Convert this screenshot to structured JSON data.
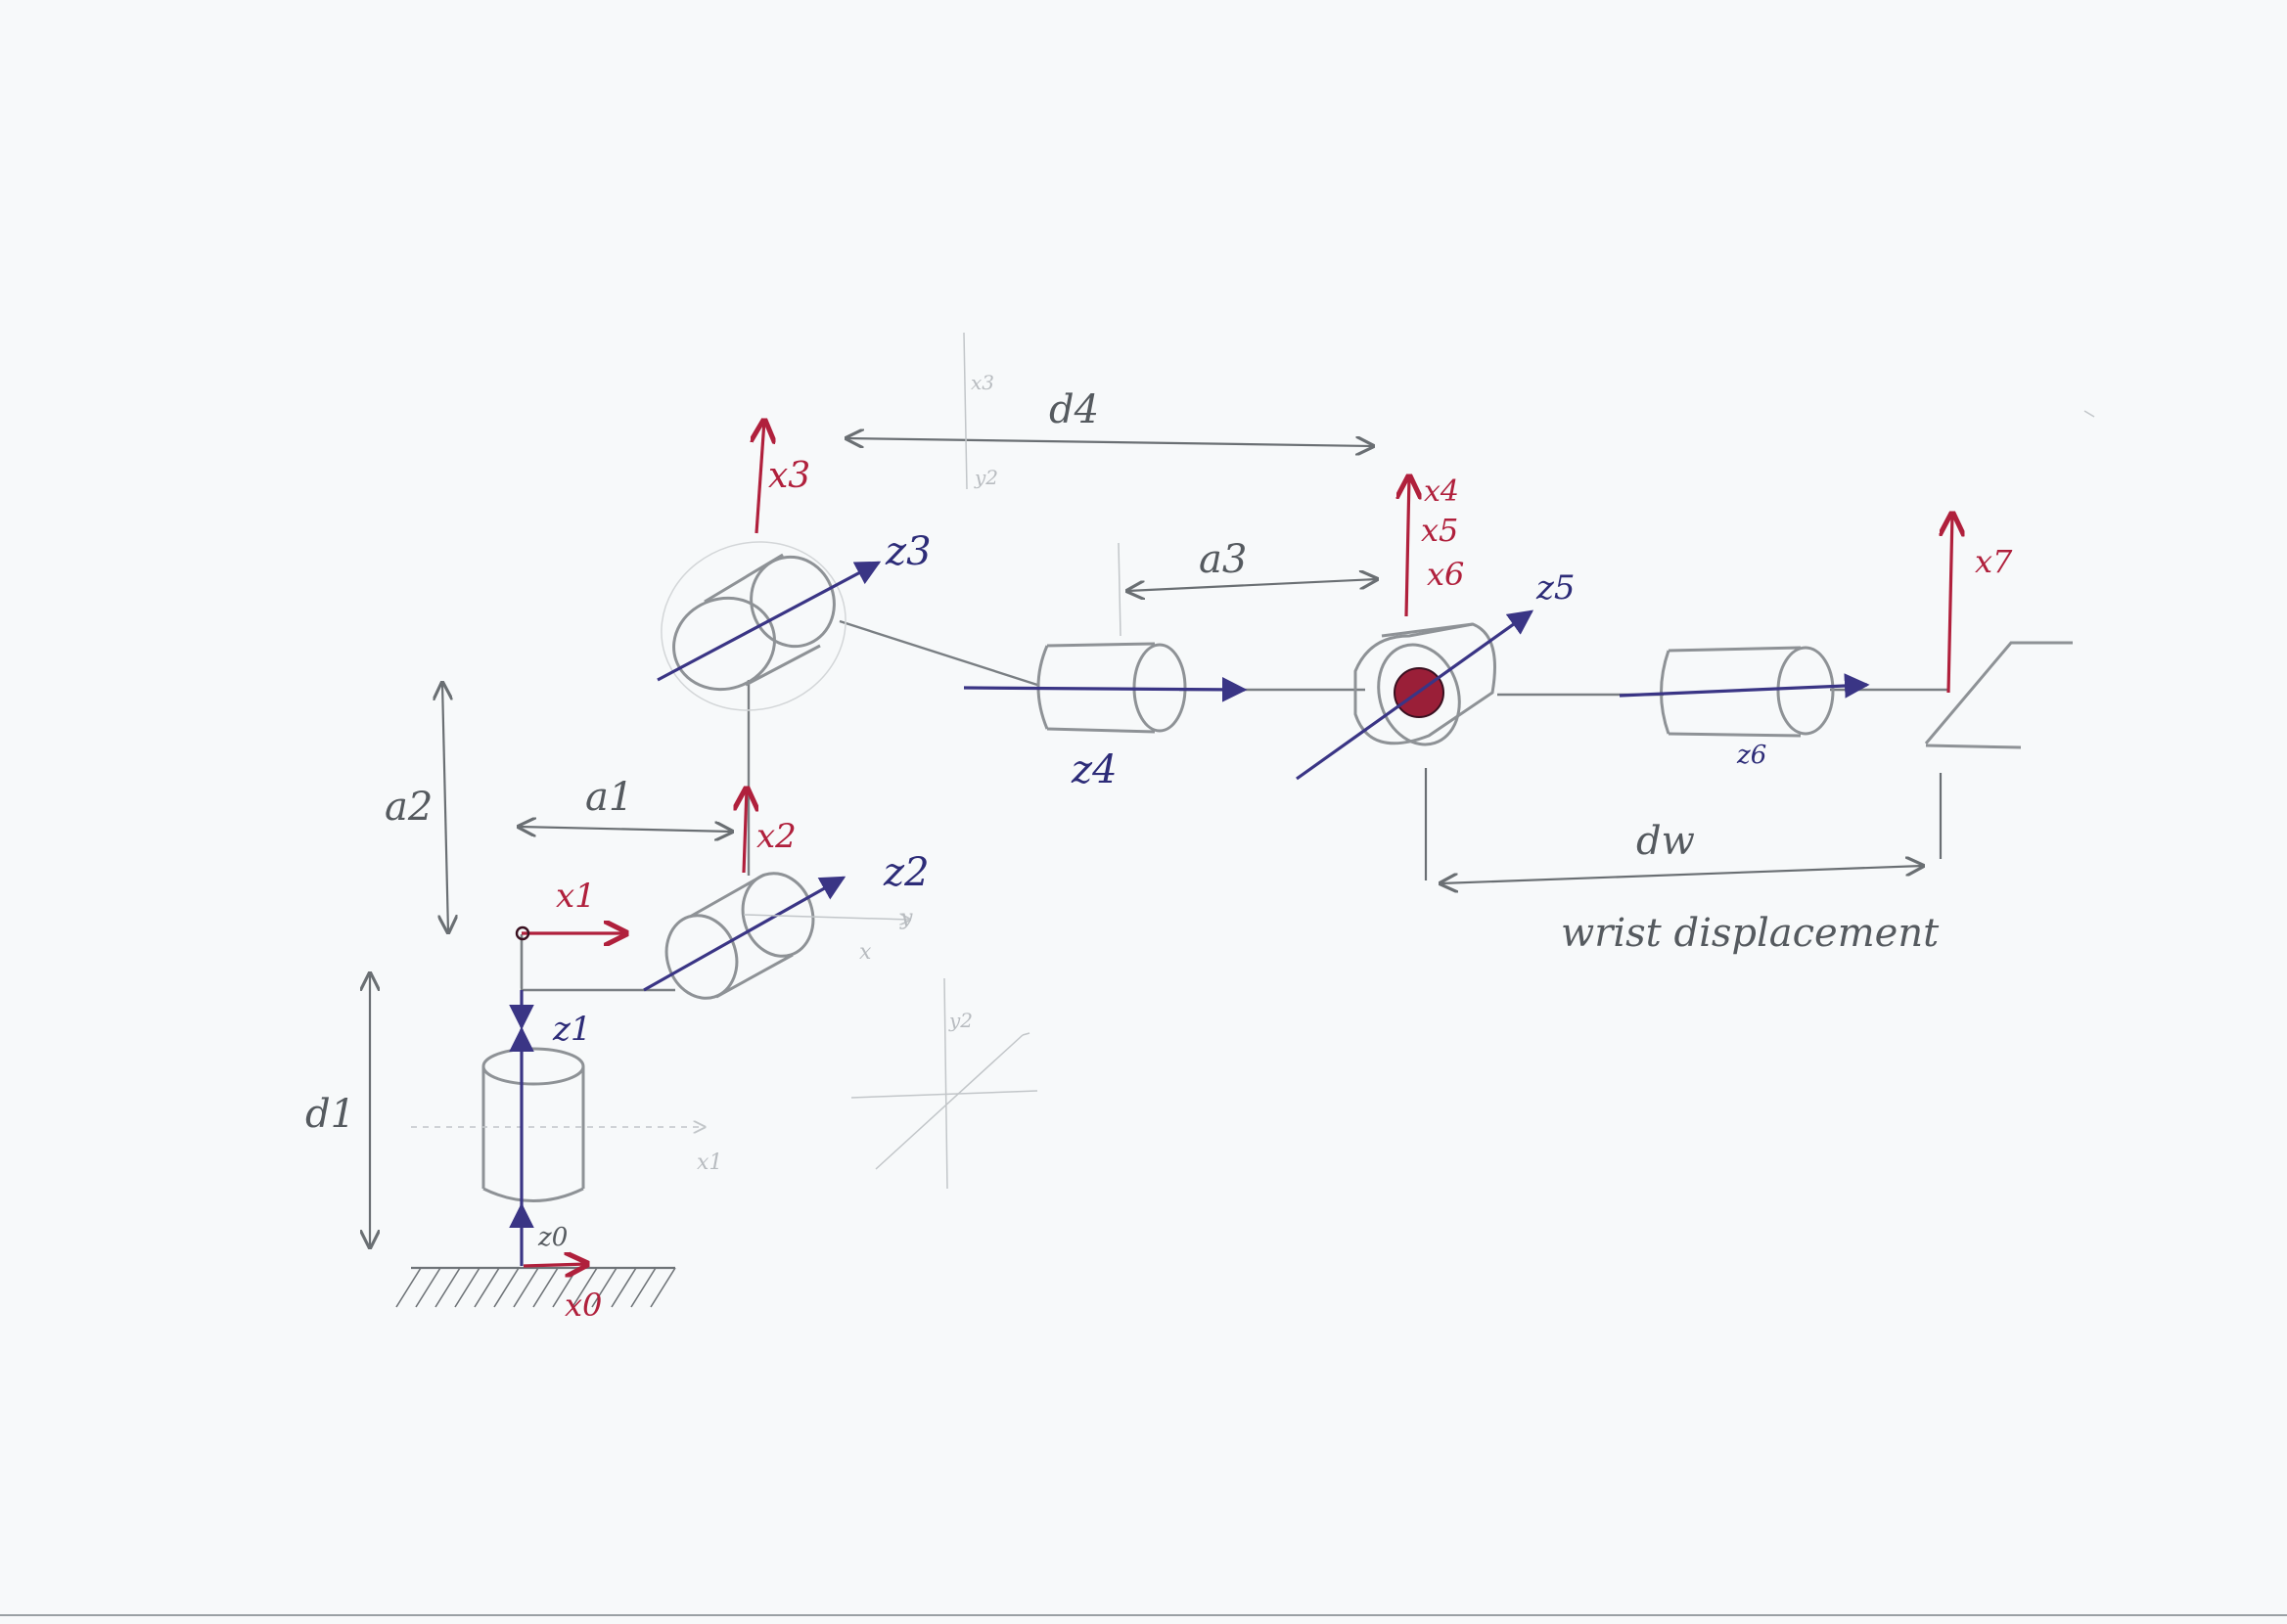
{
  "diagram": {
    "colors": {
      "pencil": "#8e9296",
      "pencil_light": "#c2c6c9",
      "axis_z": "#3a3585",
      "axis_x": "#b0203c",
      "joint_fill": "#9a1f38",
      "paper": "#f7f9fa"
    },
    "labels": {
      "d1": "d1",
      "a1": "a1",
      "a2": "a2",
      "a3": "a3",
      "d4": "d4",
      "dw": "dw",
      "wrist": "wrist displacement",
      "z0": "z0",
      "z1": "z1",
      "z2": "z2",
      "z3": "z3",
      "z4": "z4",
      "z5": "z5",
      "z6": "z6",
      "x0": "x0",
      "x1": "x1",
      "x2": "x2",
      "x3": "x3",
      "x4": "x4",
      "x5": "x5",
      "x6": "x6",
      "x7": "x7",
      "faint_x1": "x1",
      "faint_x": "x",
      "faint_y": "y",
      "faint_x3": "x3",
      "faint_y2": "y2",
      "faint_y2b": "y2"
    }
  }
}
